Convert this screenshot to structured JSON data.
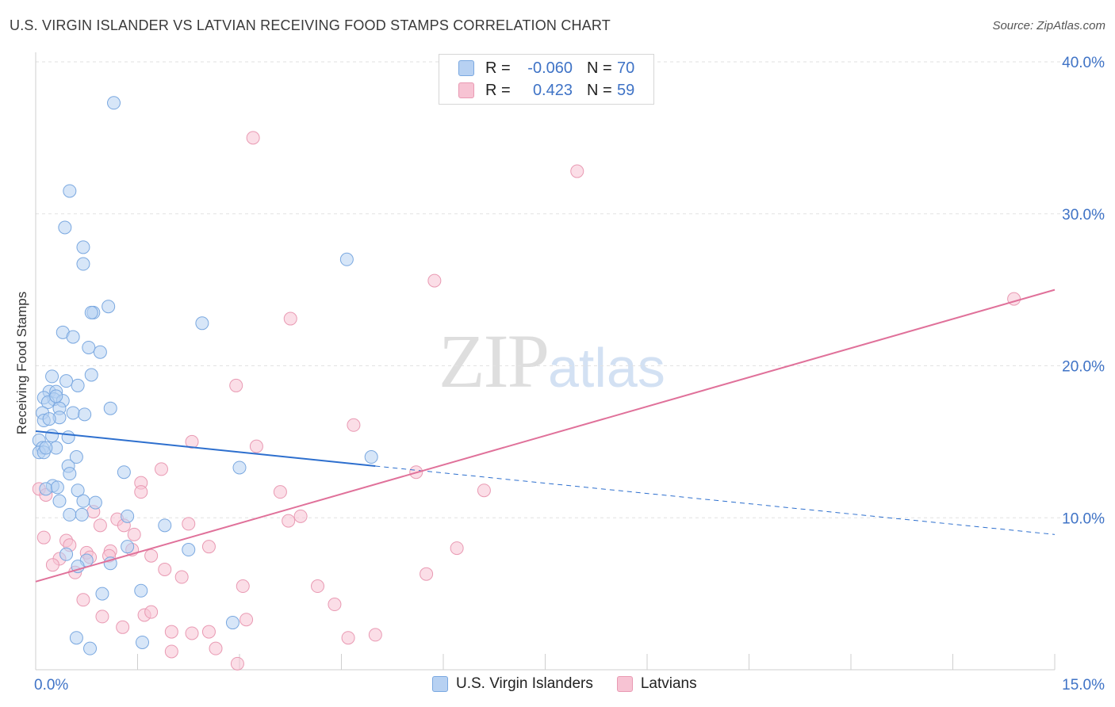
{
  "header": {
    "title": "U.S. VIRGIN ISLANDER VS LATVIAN RECEIVING FOOD STAMPS CORRELATION CHART",
    "source": "Source: ZipAtlas.com"
  },
  "watermark": {
    "zip": "ZIP",
    "atlas": "atlas"
  },
  "legend_top": {
    "rows": [
      {
        "r_label": "R =",
        "r_value": "-0.060",
        "n_label": "N =",
        "n_value": "70"
      },
      {
        "r_label": "R =",
        "r_value": "0.423",
        "n_label": "N =",
        "n_value": "59"
      }
    ]
  },
  "colors": {
    "blue_fill": "#b7d1f2",
    "blue_stroke": "#7aa8e0",
    "blue_line": "#2d6fce",
    "pink_fill": "#f7c3d3",
    "pink_stroke": "#e99ab3",
    "pink_line": "#e0719a",
    "axis_text": "#3f73c6",
    "grid": "#e2e2e2"
  },
  "chart_data": {
    "type": "scatter",
    "title": "U.S. VIRGIN ISLANDER VS LATVIAN RECEIVING FOOD STAMPS CORRELATION CHART",
    "xlabel": "",
    "ylabel": "Receiving Food Stamps",
    "xlim": [
      0,
      15
    ],
    "ylim": [
      0,
      40
    ],
    "x_tick_labels": [
      "0.0%",
      "15.0%"
    ],
    "y_ticks": [
      10,
      20,
      30,
      40
    ],
    "y_tick_labels": [
      "10.0%",
      "20.0%",
      "30.0%",
      "40.0%"
    ],
    "legend": [
      "U.S. Virgin Islanders",
      "Latvians"
    ],
    "series": [
      {
        "name": "U.S. Virgin Islanders",
        "r": -0.06,
        "n": 70,
        "trend": {
          "x0": 0.0,
          "y0": 15.7,
          "x1": 5.0,
          "y1": 13.4,
          "dash_to_x": 15.0,
          "dash_to_y": 8.9
        },
        "points": [
          [
            1.15,
            37.3
          ],
          [
            0.5,
            31.5
          ],
          [
            0.43,
            29.1
          ],
          [
            0.7,
            27.8
          ],
          [
            0.7,
            26.7
          ],
          [
            4.58,
            27.0
          ],
          [
            1.07,
            23.9
          ],
          [
            0.85,
            23.5
          ],
          [
            0.82,
            23.5
          ],
          [
            2.45,
            22.8
          ],
          [
            0.4,
            22.2
          ],
          [
            0.55,
            21.9
          ],
          [
            0.78,
            21.2
          ],
          [
            0.95,
            20.9
          ],
          [
            0.24,
            19.3
          ],
          [
            0.82,
            19.4
          ],
          [
            0.62,
            18.7
          ],
          [
            0.2,
            18.3
          ],
          [
            0.3,
            18.3
          ],
          [
            0.27,
            17.8
          ],
          [
            0.12,
            17.9
          ],
          [
            0.4,
            17.7
          ],
          [
            0.18,
            17.6
          ],
          [
            0.1,
            16.9
          ],
          [
            1.1,
            17.2
          ],
          [
            0.35,
            17.2
          ],
          [
            0.55,
            16.9
          ],
          [
            0.72,
            16.8
          ],
          [
            0.35,
            16.6
          ],
          [
            0.12,
            16.4
          ],
          [
            0.24,
            15.4
          ],
          [
            0.48,
            15.3
          ],
          [
            0.05,
            15.1
          ],
          [
            0.1,
            14.6
          ],
          [
            0.3,
            14.6
          ],
          [
            0.05,
            14.3
          ],
          [
            0.12,
            14.3
          ],
          [
            4.94,
            14.0
          ],
          [
            0.48,
            13.4
          ],
          [
            1.3,
            13.0
          ],
          [
            3.0,
            13.3
          ],
          [
            0.5,
            12.9
          ],
          [
            0.25,
            12.1
          ],
          [
            0.15,
            11.9
          ],
          [
            0.32,
            12.0
          ],
          [
            0.62,
            11.8
          ],
          [
            0.35,
            11.1
          ],
          [
            0.7,
            11.1
          ],
          [
            0.88,
            11.0
          ],
          [
            0.5,
            10.2
          ],
          [
            0.68,
            10.2
          ],
          [
            1.35,
            10.1
          ],
          [
            1.9,
            9.5
          ],
          [
            1.35,
            8.1
          ],
          [
            2.25,
            7.9
          ],
          [
            0.45,
            7.6
          ],
          [
            0.75,
            7.2
          ],
          [
            0.62,
            6.8
          ],
          [
            1.1,
            7.0
          ],
          [
            1.55,
            5.2
          ],
          [
            0.98,
            5.0
          ],
          [
            2.9,
            3.1
          ],
          [
            0.6,
            2.1
          ],
          [
            1.57,
            1.8
          ],
          [
            0.8,
            1.4
          ],
          [
            0.2,
            16.5
          ],
          [
            0.15,
            14.6
          ],
          [
            0.3,
            18.0
          ],
          [
            0.6,
            14.0
          ],
          [
            0.45,
            19.0
          ]
        ]
      },
      {
        "name": "Latvians",
        "r": 0.423,
        "n": 59,
        "trend": {
          "x0": 0.0,
          "y0": 5.8,
          "x1": 15.0,
          "y1": 25.0
        },
        "points": [
          [
            3.2,
            35.0
          ],
          [
            7.97,
            32.8
          ],
          [
            5.87,
            25.6
          ],
          [
            14.4,
            24.4
          ],
          [
            3.75,
            23.1
          ],
          [
            2.95,
            18.7
          ],
          [
            4.68,
            16.1
          ],
          [
            2.3,
            15.0
          ],
          [
            3.25,
            14.7
          ],
          [
            5.6,
            13.0
          ],
          [
            1.85,
            13.2
          ],
          [
            6.6,
            11.8
          ],
          [
            3.6,
            11.7
          ],
          [
            1.55,
            12.3
          ],
          [
            0.05,
            11.9
          ],
          [
            0.15,
            11.5
          ],
          [
            1.55,
            11.7
          ],
          [
            0.85,
            10.4
          ],
          [
            3.9,
            10.1
          ],
          [
            3.72,
            9.8
          ],
          [
            1.2,
            9.9
          ],
          [
            0.95,
            9.5
          ],
          [
            1.3,
            9.5
          ],
          [
            2.25,
            9.6
          ],
          [
            1.45,
            8.9
          ],
          [
            0.12,
            8.7
          ],
          [
            0.45,
            8.5
          ],
          [
            0.5,
            8.2
          ],
          [
            2.55,
            8.1
          ],
          [
            6.2,
            8.0
          ],
          [
            1.1,
            7.8
          ],
          [
            1.42,
            7.9
          ],
          [
            0.75,
            7.7
          ],
          [
            1.08,
            7.5
          ],
          [
            1.7,
            7.5
          ],
          [
            0.8,
            7.4
          ],
          [
            0.35,
            7.3
          ],
          [
            0.25,
            6.9
          ],
          [
            1.9,
            6.6
          ],
          [
            0.58,
            6.4
          ],
          [
            2.15,
            6.1
          ],
          [
            5.75,
            6.3
          ],
          [
            4.15,
            5.5
          ],
          [
            3.05,
            5.5
          ],
          [
            0.7,
            4.6
          ],
          [
            4.4,
            4.3
          ],
          [
            0.98,
            3.5
          ],
          [
            1.6,
            3.6
          ],
          [
            1.7,
            3.8
          ],
          [
            3.1,
            3.3
          ],
          [
            1.28,
            2.8
          ],
          [
            2.3,
            2.4
          ],
          [
            2.0,
            2.5
          ],
          [
            2.55,
            2.5
          ],
          [
            4.6,
            2.1
          ],
          [
            5.0,
            2.3
          ],
          [
            2.0,
            1.2
          ],
          [
            2.65,
            1.4
          ],
          [
            2.97,
            0.4
          ]
        ]
      }
    ]
  }
}
